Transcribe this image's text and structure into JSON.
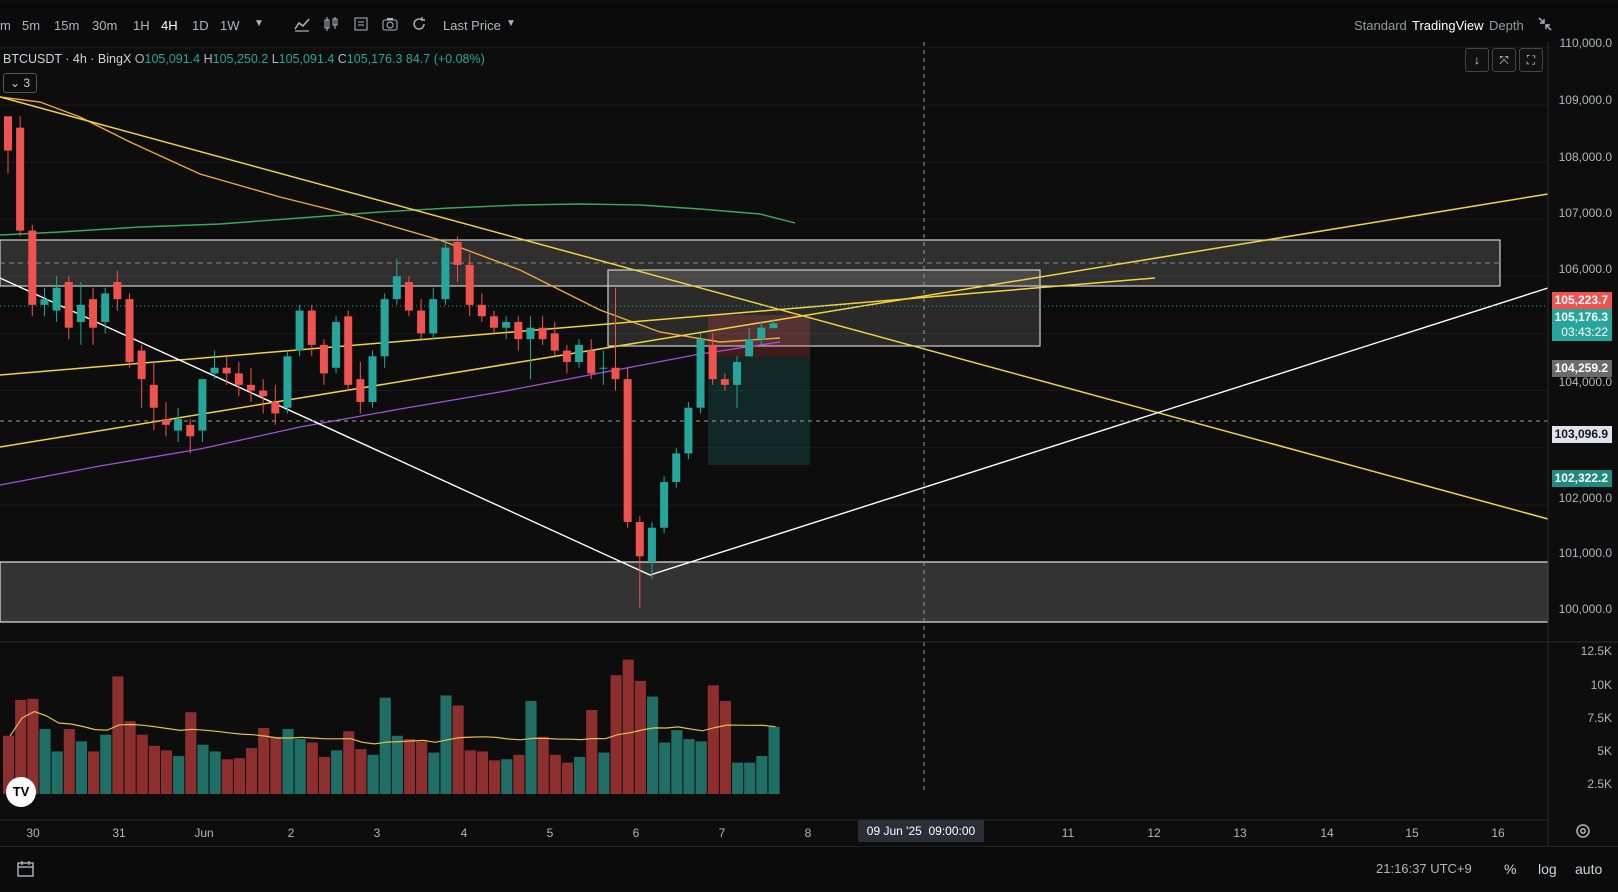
{
  "toolbar": {
    "timeframes": [
      "m",
      "5m",
      "15m",
      "30m",
      "1H",
      "4H",
      "1D",
      "1W"
    ],
    "active_timeframe": "4H",
    "price_source": "Last Price",
    "chart_modes": [
      "Standard",
      "TradingView",
      "Depth"
    ],
    "active_mode": "TradingView"
  },
  "legend": {
    "symbol": "BTCUSDT · 4h · BingX",
    "open_label": "O",
    "open": "105,091.4",
    "high_label": "H",
    "high": "105,250.2",
    "low_label": "L",
    "low": "105,091.4",
    "close_label": "C",
    "close": "105,176.3",
    "change": "84.7 (+0.08%)",
    "indicators_count": "3"
  },
  "price_axis": {
    "labels": [
      "110,000.0",
      "109,000.0",
      "108,000.0",
      "107,000.0",
      "106,000.0",
      "104,000.0",
      "102,000.0",
      "101,000.0",
      "100,000.0"
    ],
    "tags": {
      "high_line": "105,223.7",
      "last_price": "105,176.3",
      "countdown": "03:43:22",
      "level_1": "104,259.2",
      "crosshair": "103,096.9",
      "level_2": "102,322.2"
    }
  },
  "volume_axis": {
    "labels": [
      "12.5K",
      "10K",
      "7.5K",
      "5K",
      "2.5K"
    ]
  },
  "time_axis": {
    "labels": [
      "30",
      "31",
      "Jun",
      "2",
      "3",
      "4",
      "5",
      "6",
      "7",
      "8",
      "11",
      "12",
      "13",
      "14",
      "15",
      "16"
    ],
    "crosshair_date": "09 Jun '25",
    "crosshair_time": "09:00:00"
  },
  "bottom": {
    "clock": "21:16:37 UTC+9",
    "percent": "%",
    "log": "log",
    "auto": "auto"
  },
  "colors": {
    "up": "#26a69a",
    "down": "#ef5350",
    "volume_up": "#1f6f66",
    "volume_down": "#8d2f2f",
    "trend_yellow": "#f2d33c",
    "ma_orange": "#f0a83a",
    "ma_green": "#3fa55b",
    "ma_purple": "#a64fd8",
    "volume_ma": "#e0c050"
  },
  "chart_data": {
    "type": "candlestick",
    "symbol": "BTCUSDT",
    "interval": "4h",
    "ylim": [
      99600,
      110100
    ],
    "candles": [
      [
        108800,
        108800,
        107800,
        108200
      ],
      [
        108600,
        108800,
        106700,
        106800
      ],
      [
        106800,
        106900,
        105300,
        105500
      ],
      [
        105500,
        105800,
        105300,
        105600
      ],
      [
        105400,
        106000,
        105200,
        105800
      ],
      [
        105900,
        106000,
        104900,
        105100
      ],
      [
        105200,
        105900,
        104800,
        105500
      ],
      [
        105600,
        105800,
        104800,
        105100
      ],
      [
        105200,
        105800,
        105000,
        105700
      ],
      [
        105900,
        106100,
        105400,
        105600
      ],
      [
        105600,
        105700,
        104400,
        104500
      ],
      [
        104700,
        104800,
        103700,
        104200
      ],
      [
        104100,
        104500,
        103300,
        103700
      ],
      [
        103500,
        103800,
        103200,
        103400
      ],
      [
        103300,
        103700,
        103100,
        103500
      ],
      [
        103400,
        103500,
        102900,
        103200
      ],
      [
        103300,
        104200,
        103100,
        104200
      ],
      [
        104300,
        104700,
        104200,
        104400
      ],
      [
        104400,
        104600,
        104100,
        104300
      ],
      [
        104300,
        104500,
        103900,
        104100
      ],
      [
        104100,
        104400,
        103800,
        104000
      ],
      [
        104000,
        104200,
        103600,
        103900
      ],
      [
        103800,
        104100,
        103400,
        103600
      ],
      [
        103700,
        104700,
        103600,
        104600
      ],
      [
        104700,
        105500,
        104600,
        105400
      ],
      [
        105400,
        105500,
        104600,
        104800
      ],
      [
        104800,
        104900,
        104100,
        104300
      ],
      [
        104400,
        105300,
        104300,
        105200
      ],
      [
        105300,
        105400,
        104000,
        104100
      ],
      [
        104200,
        104500,
        103600,
        103800
      ],
      [
        103800,
        104700,
        103700,
        104600
      ],
      [
        104600,
        105700,
        104400,
        105600
      ],
      [
        105600,
        106300,
        105500,
        106000
      ],
      [
        105900,
        106000,
        105300,
        105400
      ],
      [
        105400,
        105600,
        104900,
        105000
      ],
      [
        105000,
        105800,
        104900,
        105600
      ],
      [
        105600,
        106600,
        105500,
        106500
      ],
      [
        106600,
        106700,
        105900,
        106200
      ],
      [
        106200,
        106400,
        105300,
        105500
      ],
      [
        105500,
        105700,
        105200,
        105300
      ],
      [
        105300,
        105400,
        105000,
        105100
      ],
      [
        105100,
        105300,
        104900,
        105200
      ],
      [
        105200,
        105300,
        104700,
        104900
      ],
      [
        104900,
        105300,
        104200,
        105100
      ],
      [
        105100,
        105300,
        104800,
        104900
      ],
      [
        105000,
        105200,
        104600,
        104700
      ],
      [
        104700,
        104800,
        104300,
        104500
      ],
      [
        104500,
        104900,
        104400,
        104800
      ],
      [
        104700,
        104900,
        104200,
        104300
      ],
      [
        104400,
        104700,
        104100,
        104400
      ],
      [
        104400,
        105800,
        104000,
        104200
      ],
      [
        104200,
        104400,
        101600,
        101700
      ],
      [
        101700,
        101800,
        100200,
        101100
      ],
      [
        101000,
        101700,
        100700,
        101600
      ],
      [
        101600,
        102500,
        101500,
        102400
      ],
      [
        102400,
        103000,
        102300,
        102900
      ],
      [
        102900,
        103800,
        102800,
        103700
      ],
      [
        103700,
        105000,
        103600,
        104900
      ],
      [
        104800,
        105000,
        104100,
        104200
      ],
      [
        104200,
        104300,
        104000,
        104100
      ],
      [
        104100,
        104600,
        103700,
        104500
      ],
      [
        104600,
        105100,
        104600,
        104900
      ],
      [
        104900,
        105200,
        104800,
        105100
      ],
      [
        105091.4,
        105250.2,
        105091.4,
        105176.3
      ]
    ],
    "volume_ylim": [
      0,
      12500
    ],
    "volume": [
      5200,
      8400,
      8500,
      5800,
      3800,
      5800,
      4700,
      3800,
      5300,
      10500,
      6500,
      5300,
      4300,
      3900,
      3400,
      7300,
      4400,
      3800,
      3100,
      3200,
      4100,
      5900,
      5100,
      5800,
      4900,
      4600,
      3300,
      3900,
      5600,
      4000,
      3500,
      8600,
      5200,
      4900,
      4700,
      3700,
      8800,
      7900,
      3900,
      3800,
      3000,
      3100,
      3500,
      8300,
      5100,
      3500,
      2800,
      3300,
      7500,
      3700,
      10600,
      12000,
      10100,
      8700,
      4600,
      5700,
      4900,
      4700,
      9700,
      8300,
      2800,
      2800,
      3400,
      6000
    ]
  }
}
